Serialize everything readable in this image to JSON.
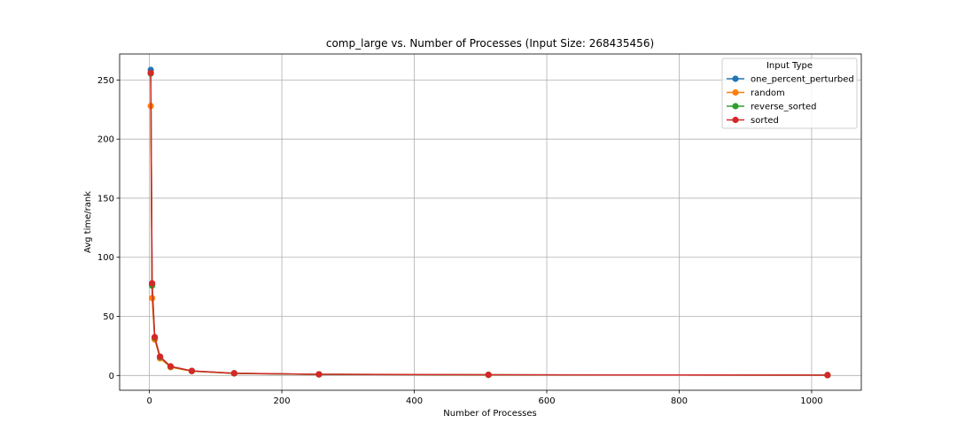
{
  "chart_data": {
    "type": "line",
    "title": "comp_large vs. Number of Processes (Input Size: 268435456)",
    "xlabel": "Number of Processes",
    "ylabel": "Avg time/rank",
    "xlim": [
      -45,
      1075
    ],
    "ylim": [
      -12.5,
      272
    ],
    "x_ticks": [
      0,
      200,
      400,
      600,
      800,
      1000
    ],
    "y_ticks": [
      0,
      50,
      100,
      150,
      200,
      250
    ],
    "grid": true,
    "legend": {
      "title": "Input Type",
      "placement": "top-right"
    },
    "x": [
      2,
      4,
      8,
      16,
      32,
      64,
      128,
      256,
      512,
      1024
    ],
    "series": [
      {
        "name": "one_percent_perturbed",
        "color": "#1f77b4",
        "values": [
          258.5,
          77.0,
          31.5,
          15.5,
          7.5,
          3.8,
          1.8,
          0.9,
          0.5,
          0.3
        ]
      },
      {
        "name": "random",
        "color": "#ff7f0e",
        "values": [
          228.0,
          65.5,
          30.5,
          14.5,
          7.0,
          3.6,
          1.7,
          0.9,
          0.5,
          0.3
        ]
      },
      {
        "name": "reverse_sorted",
        "color": "#2ca02c",
        "values": [
          255.5,
          76.0,
          32.0,
          15.5,
          7.5,
          3.8,
          1.8,
          0.9,
          0.5,
          0.3
        ]
      },
      {
        "name": "sorted",
        "color": "#d62728",
        "values": [
          256.0,
          78.0,
          32.5,
          16.0,
          7.7,
          3.9,
          1.9,
          1.0,
          0.6,
          0.3
        ]
      }
    ]
  }
}
